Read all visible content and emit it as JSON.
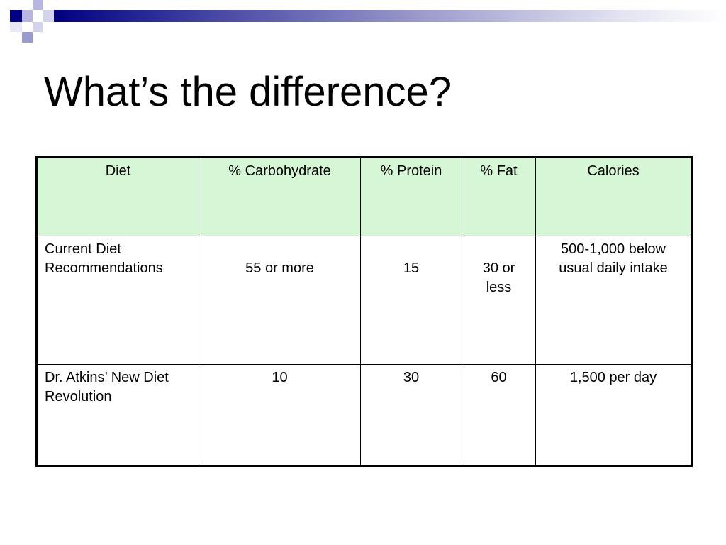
{
  "slide": {
    "title": "What’s the difference?"
  },
  "table": {
    "headers": [
      "Diet",
      "% Carbohydrate",
      "% Protein",
      "% Fat",
      "Calories"
    ],
    "rows": [
      {
        "diet": "Current Diet Recommendations",
        "carbohydrate": "55 or more",
        "protein": "15",
        "fat": "30 or less",
        "calories": "500-1,000 below usual daily intake"
      },
      {
        "diet": "Dr. Atkins’ New Diet Revolution",
        "carbohydrate": "10",
        "protein": "30",
        "fat": "60",
        "calories": "1,500 per day"
      }
    ]
  },
  "colors": {
    "header_fill": "#d6f7d6",
    "accent_navy": "#000080"
  }
}
